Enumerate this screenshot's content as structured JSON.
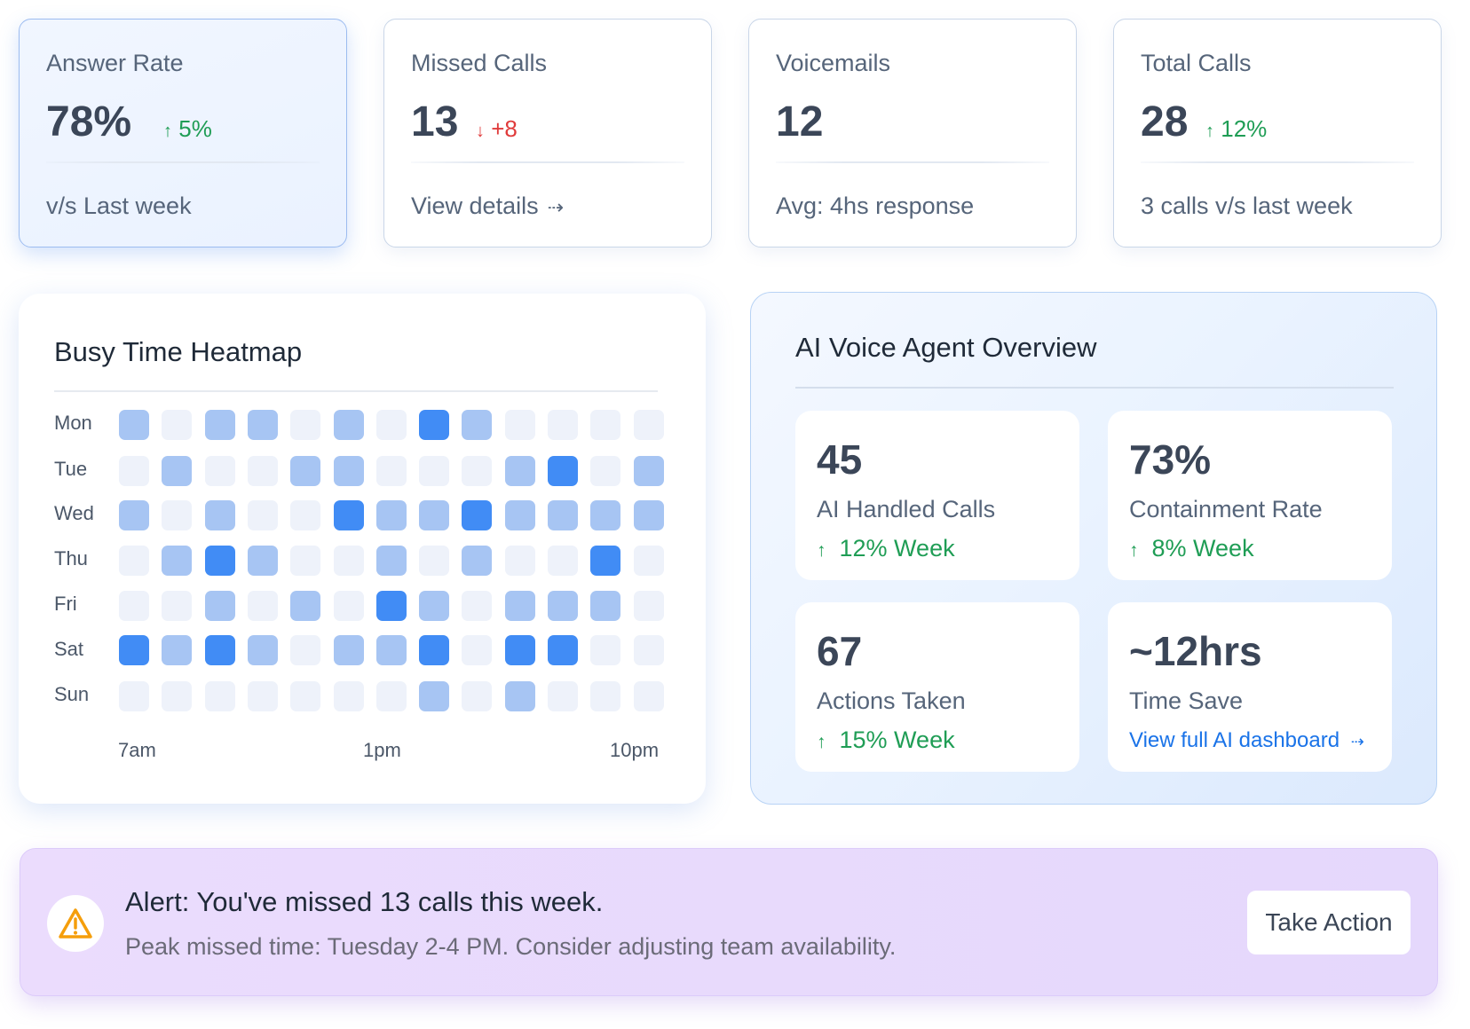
{
  "stats": [
    {
      "label": "Answer Rate",
      "value": "78%",
      "trend_arrow": "↑",
      "trend": "5%",
      "direction": "up",
      "footer": "v/s  Last week"
    },
    {
      "label": "Missed Calls",
      "value": "13",
      "trend_arrow": "↓",
      "trend": "+8",
      "direction": "down",
      "footer": "View details",
      "footer_icon": "⇢"
    },
    {
      "label": "Voicemails",
      "value": "12",
      "footer": "Avg: 4hs response"
    },
    {
      "label": "Total Calls",
      "value": "28",
      "trend_arrow": "↑",
      "trend": "12%",
      "direction": "up",
      "footer": "3 calls v/s last week"
    }
  ],
  "heatmap": {
    "title": "Busy Time Heatmap",
    "days": [
      "Mon",
      "Tue",
      "Wed",
      "Thu",
      "Fri",
      "Sat",
      "Sun"
    ],
    "time_labels": [
      "7am",
      "1pm",
      "10pm"
    ],
    "levels": [
      [
        1,
        0,
        1,
        1,
        0,
        1,
        0,
        2,
        1,
        0,
        0,
        0,
        0
      ],
      [
        0,
        1,
        0,
        0,
        1,
        1,
        0,
        0,
        0,
        1,
        2,
        0,
        1
      ],
      [
        1,
        0,
        1,
        0,
        0,
        2,
        1,
        1,
        2,
        1,
        1,
        1,
        1
      ],
      [
        0,
        1,
        2,
        1,
        0,
        0,
        1,
        0,
        1,
        0,
        0,
        2,
        0
      ],
      [
        0,
        0,
        1,
        0,
        1,
        0,
        2,
        1,
        0,
        1,
        1,
        1,
        0
      ],
      [
        2,
        1,
        2,
        1,
        0,
        1,
        1,
        2,
        0,
        2,
        2,
        0,
        0
      ],
      [
        0,
        0,
        0,
        0,
        0,
        0,
        0,
        1,
        0,
        1,
        0,
        0,
        0
      ]
    ],
    "colors": {
      "low": "#eef2fa",
      "medium": "#a7c5f3",
      "high": "#418cf5"
    }
  },
  "ai_overview": {
    "title": "AI Voice Agent Overview",
    "tiles": [
      {
        "value": "45",
        "label": "AI Handled Calls",
        "trend_arrow": "↑",
        "trend": "12% Week"
      },
      {
        "value": "73%",
        "label": "Containment Rate",
        "trend_arrow": "↑",
        "trend": "8% Week"
      },
      {
        "value": "67",
        "label": "Actions Taken",
        "trend_arrow": "↑",
        "trend": "15% Week"
      },
      {
        "value": "~12hrs",
        "label": "Time Save",
        "link": "View full AI dashboard",
        "link_icon": "⇢"
      }
    ]
  },
  "alert": {
    "title": "Alert: You've missed 13 calls this week.",
    "subtitle": "Peak missed time: Tuesday 2-4 PM. Consider adjusting team availability.",
    "action": "Take Action",
    "icon": "warning-triangle-icon",
    "icon_color": "#f59e0b"
  }
}
